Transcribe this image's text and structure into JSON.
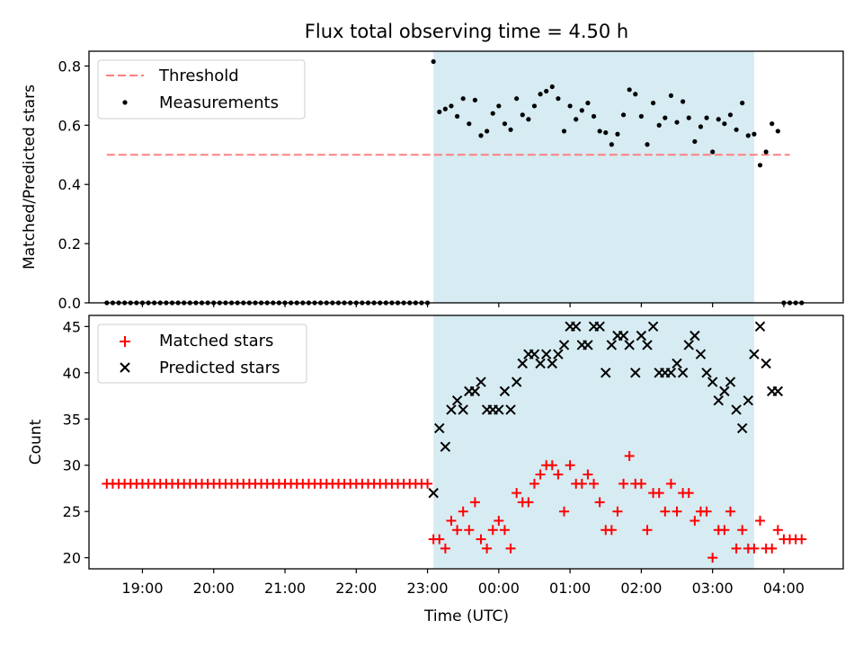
{
  "figure": {
    "title": "Flux total observing time = 4.50 h"
  },
  "colors": {
    "highlight": "#add8e6",
    "threshold": "#ff8080",
    "measurements": "#000000",
    "matched": "#ff0000",
    "predicted": "#000000"
  },
  "chart_data": [
    {
      "type": "scatter",
      "ylabel": "Matched/Predicted stars",
      "ylim": [
        0.0,
        0.85
      ],
      "yticks": [
        0.0,
        0.2,
        0.4,
        0.6,
        0.8
      ],
      "ytick_labels": [
        "0.0",
        "0.2",
        "0.4",
        "0.6",
        "0.8"
      ],
      "x_axis_range": [
        "18:15",
        "04:50"
      ],
      "highlight_span": [
        "23:05",
        "03:35"
      ],
      "legend_position": "upper left",
      "threshold": {
        "name": "Threshold",
        "value": 0.5,
        "x_range": [
          "18:30",
          "04:05"
        ],
        "style": "dashed"
      },
      "series": [
        {
          "name": "Measurements",
          "marker": "dot",
          "x": [
            "18:30",
            "18:35",
            "18:40",
            "18:45",
            "18:50",
            "18:55",
            "19:00",
            "19:05",
            "19:10",
            "19:15",
            "19:20",
            "19:25",
            "19:30",
            "19:35",
            "19:40",
            "19:45",
            "19:50",
            "19:55",
            "20:00",
            "20:05",
            "20:10",
            "20:15",
            "20:20",
            "20:25",
            "20:30",
            "20:35",
            "20:40",
            "20:45",
            "20:50",
            "20:55",
            "21:00",
            "21:05",
            "21:10",
            "21:15",
            "21:20",
            "21:25",
            "21:30",
            "21:35",
            "21:40",
            "21:45",
            "21:50",
            "21:55",
            "22:00",
            "22:05",
            "22:10",
            "22:15",
            "22:20",
            "22:25",
            "22:30",
            "22:35",
            "22:40",
            "22:45",
            "22:50",
            "22:55",
            "23:00",
            "23:05",
            "23:10",
            "23:15",
            "23:20",
            "23:25",
            "23:30",
            "23:35",
            "23:40",
            "23:45",
            "23:50",
            "23:55",
            "00:00",
            "00:05",
            "00:10",
            "00:15",
            "00:20",
            "00:25",
            "00:30",
            "00:35",
            "00:40",
            "00:45",
            "00:50",
            "00:55",
            "01:00",
            "01:05",
            "01:10",
            "01:15",
            "01:20",
            "01:25",
            "01:30",
            "01:35",
            "01:40",
            "01:45",
            "01:50",
            "01:55",
            "02:00",
            "02:05",
            "02:10",
            "02:15",
            "02:20",
            "02:25",
            "02:30",
            "02:35",
            "02:40",
            "02:45",
            "02:50",
            "02:55",
            "03:00",
            "03:05",
            "03:10",
            "03:15",
            "03:20",
            "03:25",
            "03:30",
            "03:35",
            "03:40",
            "03:45",
            "03:50",
            "03:55",
            "04:00",
            "04:05",
            "04:10",
            "04:15"
          ],
          "y": [
            0,
            0,
            0,
            0,
            0,
            0,
            0,
            0,
            0,
            0,
            0,
            0,
            0,
            0,
            0,
            0,
            0,
            0,
            0,
            0,
            0,
            0,
            0,
            0,
            0,
            0,
            0,
            0,
            0,
            0,
            0,
            0,
            0,
            0,
            0,
            0,
            0,
            0,
            0,
            0,
            0,
            0,
            0,
            0,
            0,
            0,
            0,
            0,
            0,
            0,
            0,
            0,
            0,
            0,
            0,
            0.815,
            0.645,
            0.655,
            0.665,
            0.63,
            0.69,
            0.605,
            0.685,
            0.565,
            0.58,
            0.64,
            0.665,
            0.605,
            0.585,
            0.69,
            0.635,
            0.62,
            0.665,
            0.705,
            0.715,
            0.73,
            0.69,
            0.58,
            0.665,
            0.62,
            0.65,
            0.675,
            0.63,
            0.58,
            0.575,
            0.535,
            0.57,
            0.635,
            0.72,
            0.705,
            0.63,
            0.535,
            0.675,
            0.6,
            0.625,
            0.7,
            0.61,
            0.68,
            0.625,
            0.545,
            0.595,
            0.625,
            0.51,
            0.62,
            0.605,
            0.635,
            0.585,
            0.675,
            0.565,
            0.57,
            0.465,
            0.51,
            0.605,
            0.58,
            0,
            0,
            0,
            0
          ]
        }
      ]
    },
    {
      "type": "scatter",
      "xlabel": "Time (UTC)",
      "ylabel": "Count",
      "ylim": [
        18.8,
        46.2
      ],
      "yticks": [
        20,
        25,
        30,
        35,
        40,
        45
      ],
      "ytick_labels": [
        "20",
        "25",
        "30",
        "35",
        "40",
        "45"
      ],
      "x_axis_range": [
        "18:15",
        "04:50"
      ],
      "xticks": [
        "19:00",
        "20:00",
        "21:00",
        "22:00",
        "23:00",
        "00:00",
        "01:00",
        "02:00",
        "03:00",
        "04:00"
      ],
      "xtick_labels": [
        "19:00",
        "20:00",
        "21:00",
        "22:00",
        "23:00",
        "00:00",
        "01:00",
        "02:00",
        "03:00",
        "04:00"
      ],
      "highlight_span": [
        "23:05",
        "03:35"
      ],
      "legend_position": "upper left",
      "series": [
        {
          "name": "Matched stars",
          "marker": "plus",
          "x": [
            "18:30",
            "18:35",
            "18:40",
            "18:45",
            "18:50",
            "18:55",
            "19:00",
            "19:05",
            "19:10",
            "19:15",
            "19:20",
            "19:25",
            "19:30",
            "19:35",
            "19:40",
            "19:45",
            "19:50",
            "19:55",
            "20:00",
            "20:05",
            "20:10",
            "20:15",
            "20:20",
            "20:25",
            "20:30",
            "20:35",
            "20:40",
            "20:45",
            "20:50",
            "20:55",
            "21:00",
            "21:05",
            "21:10",
            "21:15",
            "21:20",
            "21:25",
            "21:30",
            "21:35",
            "21:40",
            "21:45",
            "21:50",
            "21:55",
            "22:00",
            "22:05",
            "22:10",
            "22:15",
            "22:20",
            "22:25",
            "22:30",
            "22:35",
            "22:40",
            "22:45",
            "22:50",
            "22:55",
            "23:00",
            "23:05",
            "23:10",
            "23:15",
            "23:20",
            "23:25",
            "23:30",
            "23:35",
            "23:40",
            "23:45",
            "23:50",
            "23:55",
            "00:00",
            "00:05",
            "00:10",
            "00:15",
            "00:20",
            "00:25",
            "00:30",
            "00:35",
            "00:40",
            "00:45",
            "00:50",
            "00:55",
            "01:00",
            "01:05",
            "01:10",
            "01:15",
            "01:20",
            "01:25",
            "01:30",
            "01:35",
            "01:40",
            "01:45",
            "01:50",
            "01:55",
            "02:00",
            "02:05",
            "02:10",
            "02:15",
            "02:20",
            "02:25",
            "02:30",
            "02:35",
            "02:40",
            "02:45",
            "02:50",
            "02:55",
            "03:00",
            "03:05",
            "03:10",
            "03:15",
            "03:20",
            "03:25",
            "03:30",
            "03:35",
            "03:40",
            "03:45",
            "03:50",
            "03:55",
            "04:00",
            "04:05",
            "04:10",
            "04:15"
          ],
          "y": [
            28,
            28,
            28,
            28,
            28,
            28,
            28,
            28,
            28,
            28,
            28,
            28,
            28,
            28,
            28,
            28,
            28,
            28,
            28,
            28,
            28,
            28,
            28,
            28,
            28,
            28,
            28,
            28,
            28,
            28,
            28,
            28,
            28,
            28,
            28,
            28,
            28,
            28,
            28,
            28,
            28,
            28,
            28,
            28,
            28,
            28,
            28,
            28,
            28,
            28,
            28,
            28,
            28,
            28,
            28,
            22,
            22,
            21,
            24,
            23,
            25,
            23,
            26,
            22,
            21,
            23,
            24,
            23,
            21,
            27,
            26,
            26,
            28,
            29,
            30,
            30,
            29,
            25,
            30,
            28,
            28,
            29,
            28,
            26,
            23,
            23,
            25,
            28,
            31,
            28,
            28,
            23,
            27,
            27,
            25,
            28,
            25,
            27,
            27,
            24,
            25,
            25,
            20,
            23,
            23,
            25,
            21,
            23,
            21,
            21,
            24,
            21,
            21,
            23,
            22,
            22,
            22,
            22
          ]
        },
        {
          "name": "Predicted stars",
          "marker": "x",
          "x": [
            "23:05",
            "23:10",
            "23:15",
            "23:20",
            "23:25",
            "23:30",
            "23:35",
            "23:40",
            "23:45",
            "23:50",
            "23:55",
            "00:00",
            "00:05",
            "00:10",
            "00:15",
            "00:20",
            "00:25",
            "00:30",
            "00:35",
            "00:40",
            "00:45",
            "00:50",
            "00:55",
            "01:00",
            "01:05",
            "01:10",
            "01:15",
            "01:20",
            "01:25",
            "01:30",
            "01:35",
            "01:40",
            "01:45",
            "01:50",
            "01:55",
            "02:00",
            "02:05",
            "02:10",
            "02:15",
            "02:20",
            "02:25",
            "02:30",
            "02:35",
            "02:40",
            "02:45",
            "02:50",
            "02:55",
            "03:00",
            "03:05",
            "03:10",
            "03:15",
            "03:20",
            "03:25",
            "03:30",
            "03:35",
            "03:40",
            "03:45",
            "03:50",
            "03:55"
          ],
          "y": [
            27,
            34,
            32,
            36,
            37,
            36,
            38,
            38,
            39,
            36,
            36,
            36,
            38,
            36,
            39,
            41,
            42,
            42,
            41,
            42,
            41,
            42,
            43,
            45,
            45,
            43,
            43,
            45,
            45,
            40,
            43,
            44,
            44,
            43,
            40,
            44,
            43,
            45,
            40,
            40,
            40,
            41,
            40,
            43,
            44,
            42,
            40,
            39,
            37,
            38,
            39,
            36,
            34,
            37,
            42,
            45,
            41,
            38,
            38
          ]
        }
      ]
    }
  ]
}
